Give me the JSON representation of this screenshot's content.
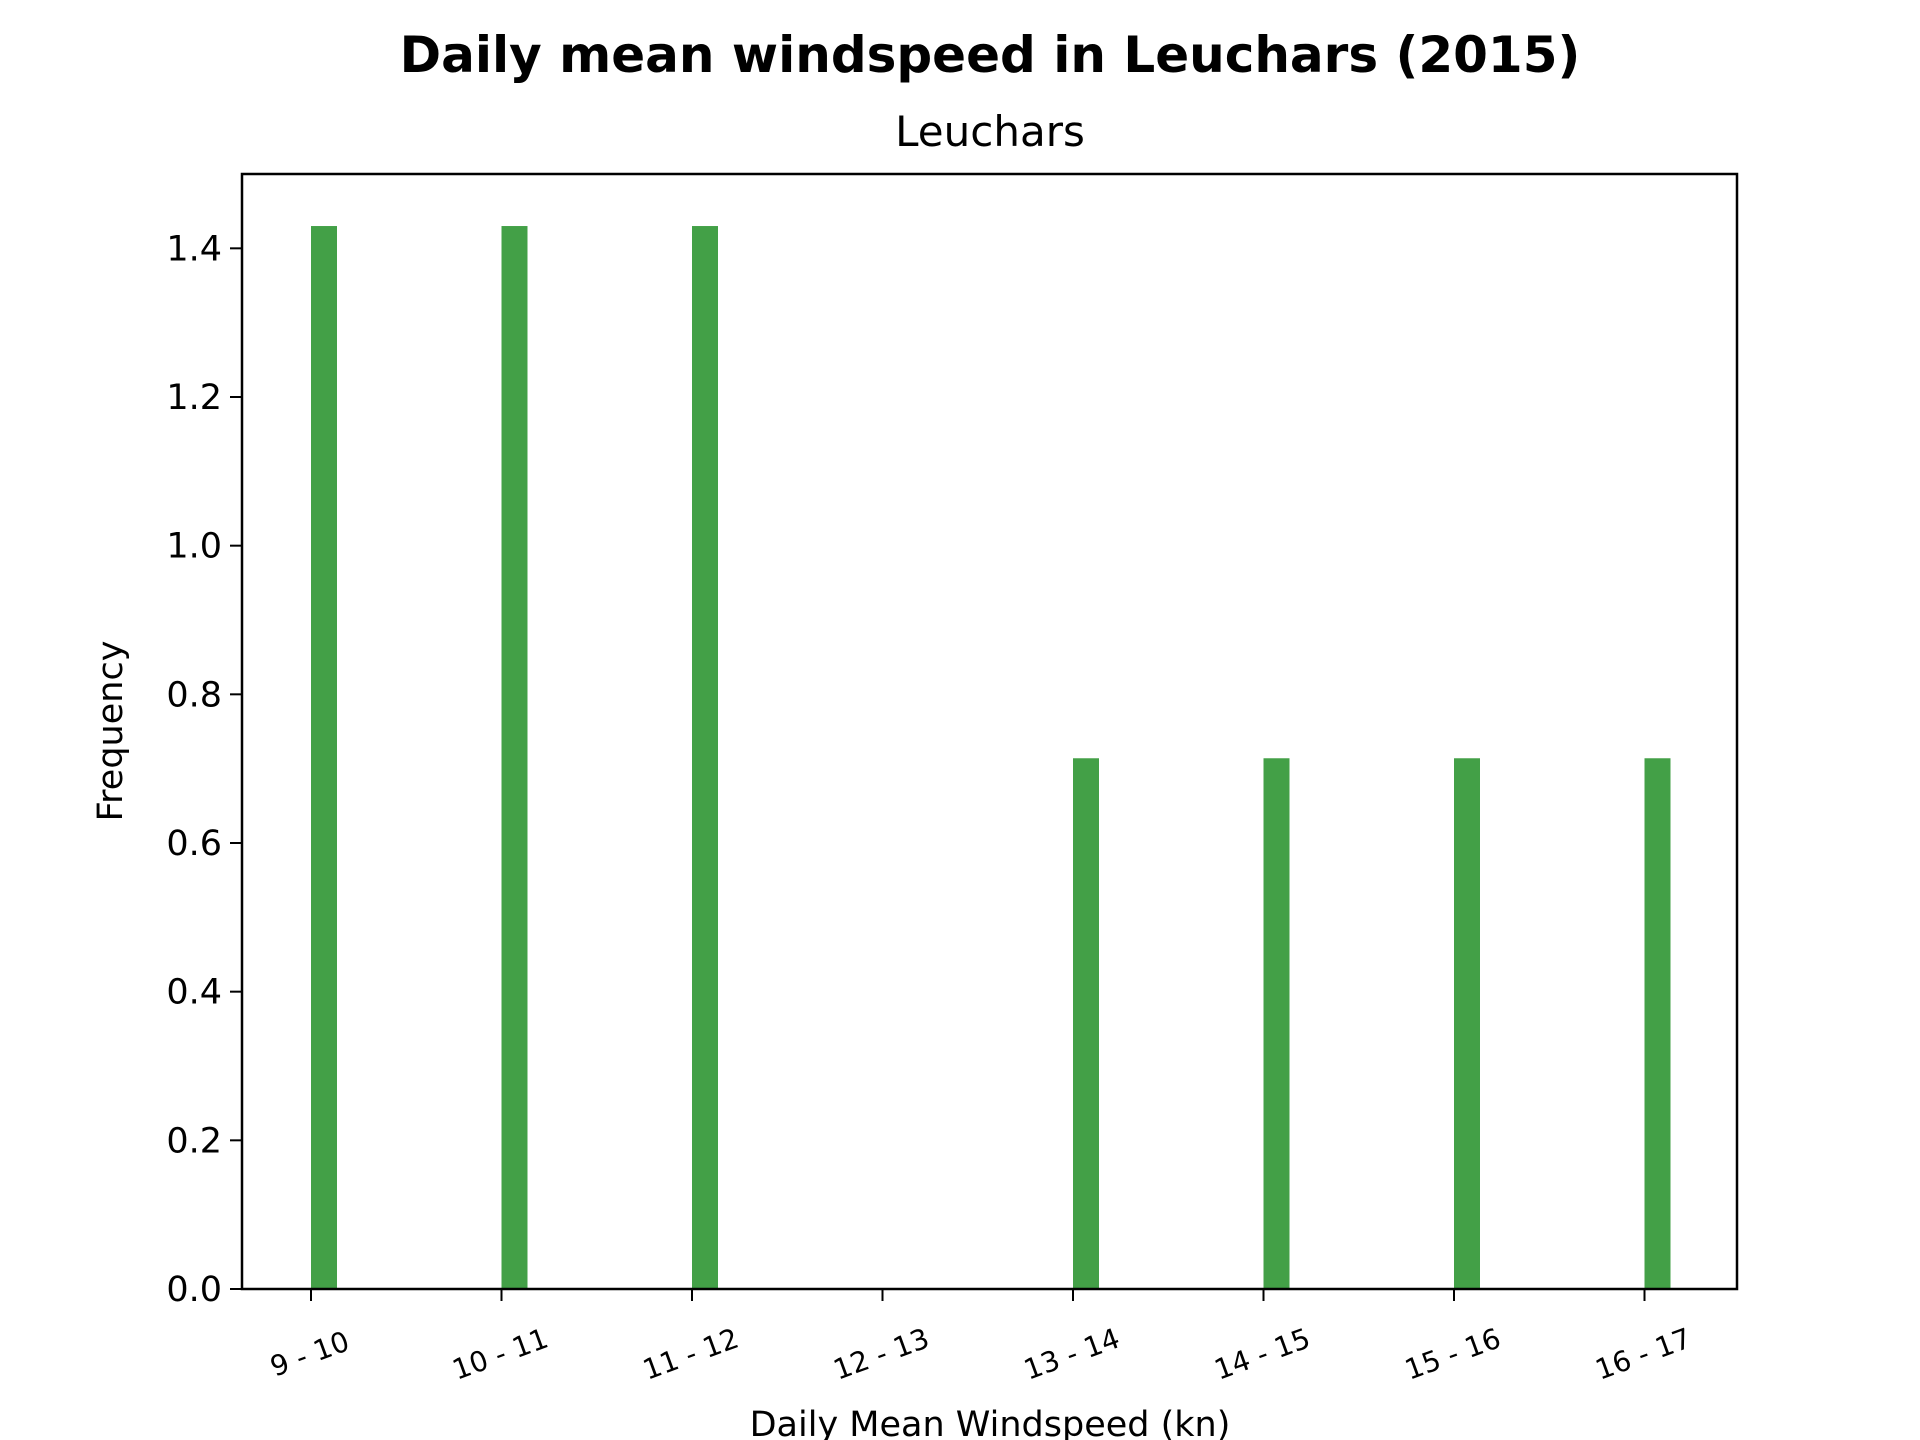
{
  "chart_data": {
    "type": "bar",
    "title": "Daily mean windspeed in Leuchars (2015)",
    "subtitle": "Leuchars",
    "xlabel": "Daily Mean Windspeed (kn)",
    "ylabel": "Frequency",
    "categories": [
      "9 - 10",
      "10 - 11",
      "11 - 12",
      "12 - 13",
      "13 - 14",
      "14 - 15",
      "15 - 16",
      "16 - 17"
    ],
    "values": [
      1.43,
      1.43,
      1.43,
      0,
      0.714,
      0.714,
      0.714,
      0.714
    ],
    "yticks": [
      "0.0",
      "0.2",
      "0.4",
      "0.6",
      "0.8",
      "1.0",
      "1.2",
      "1.4"
    ],
    "ylim": [
      0,
      1.5
    ],
    "bar_color": "#43a047",
    "grid": false,
    "legend": "none"
  }
}
